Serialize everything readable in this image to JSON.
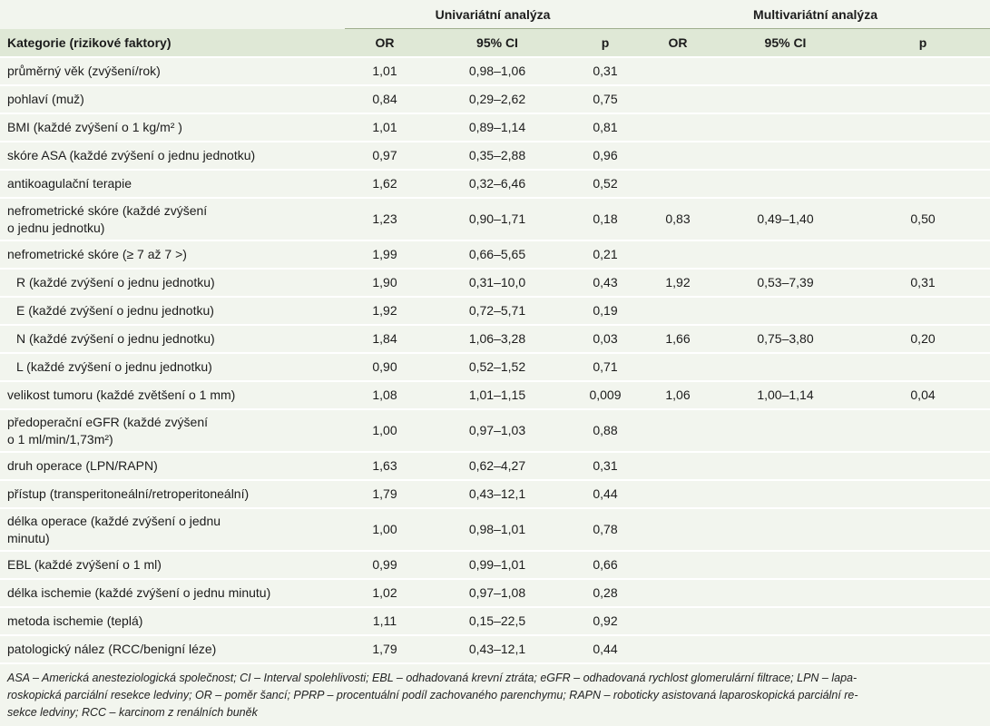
{
  "groups": {
    "univariate": "Univariátní analýza",
    "multivariate": "Multivariátní analýza"
  },
  "headers": {
    "category": "Kategorie (rizikové faktory)",
    "uni_or": "OR",
    "uni_ci": "95% CI",
    "uni_p": "p",
    "multi_or": "OR",
    "multi_ci": "95% CI",
    "multi_p": "p"
  },
  "rows": [
    {
      "label": "průměrný věk (zvýšení/rok)",
      "or": "1,01",
      "ci": "0,98–1,06",
      "p": "0,31",
      "m_or": "",
      "m_ci": "",
      "m_p": ""
    },
    {
      "label": "pohlaví (muž)",
      "or": "0,84",
      "ci": "0,29–2,62",
      "p": "0,75",
      "m_or": "",
      "m_ci": "",
      "m_p": ""
    },
    {
      "label": "BMI (každé zvýšení o 1 kg/m² )",
      "or": "1,01",
      "ci": "0,89–1,14",
      "p": "0,81",
      "m_or": "",
      "m_ci": "",
      "m_p": ""
    },
    {
      "label": "skóre ASA (každé zvýšení o jednu jednotku)",
      "or": "0,97",
      "ci": "0,35–2,88",
      "p": "0,96",
      "m_or": "",
      "m_ci": "",
      "m_p": ""
    },
    {
      "label": "antikoagulační terapie",
      "or": "1,62",
      "ci": "0,32–6,46",
      "p": "0,52",
      "m_or": "",
      "m_ci": "",
      "m_p": ""
    },
    {
      "label": "nefrometrické skóre (každé zvýšení",
      "label2": "o jednu jednotku)",
      "or": "1,23",
      "ci": "0,90–1,71",
      "p": "0,18",
      "m_or": "0,83",
      "m_ci": "0,49–1,40",
      "m_p": "0,50"
    },
    {
      "label": "nefrometrické skóre (≥ 7 až 7 >)",
      "or": "1,99",
      "ci": "0,66–5,65",
      "p": "0,21",
      "m_or": "",
      "m_ci": "",
      "m_p": ""
    },
    {
      "label": "R (každé zvýšení o jednu jednotku)",
      "indent": true,
      "or": "1,90",
      "ci": "0,31–10,0",
      "p": "0,43",
      "m_or": "1,92",
      "m_ci": "0,53–7,39",
      "m_p": "0,31"
    },
    {
      "label": "E (každé zvýšení o jednu jednotku)",
      "indent": true,
      "or": "1,92",
      "ci": "0,72–5,71",
      "p": "0,19",
      "m_or": "",
      "m_ci": "",
      "m_p": ""
    },
    {
      "label": "N (každé zvýšení o jednu jednotku)",
      "indent": true,
      "or": "1,84",
      "ci": "1,06–3,28",
      "p": "0,03",
      "m_or": "1,66",
      "m_ci": "0,75–3,80",
      "m_p": "0,20"
    },
    {
      "label": "L (každé zvýšení o jednu jednotku)",
      "indent": true,
      "or": "0,90",
      "ci": "0,52–1,52",
      "p": "0,71",
      "m_or": "",
      "m_ci": "",
      "m_p": ""
    },
    {
      "label": "velikost tumoru (každé zvětšení o 1 mm)",
      "or": "1,08",
      "ci": "1,01–1,15",
      "p": "0,009",
      "m_or": "1,06",
      "m_ci": "1,00–1,14",
      "m_p": "0,04"
    },
    {
      "label": "předoperační eGFR (každé zvýšení",
      "label2": "o 1 ml/min/1,73m²)",
      "or": "1,00",
      "ci": "0,97–1,03",
      "p": "0,88",
      "m_or": "",
      "m_ci": "",
      "m_p": ""
    },
    {
      "label": "druh operace (LPN/RAPN)",
      "or": "1,63",
      "ci": "0,62–4,27",
      "p": "0,31",
      "m_or": "",
      "m_ci": "",
      "m_p": ""
    },
    {
      "label": "přístup (transperitoneální/retroperitoneální)",
      "or": "1,79",
      "ci": "0,43–12,1",
      "p": "0,44",
      "m_or": "",
      "m_ci": "",
      "m_p": ""
    },
    {
      "label": "délka operace (každé zvýšení o jednu",
      "label2": "minutu)",
      "or": "1,00",
      "ci": "0,98–1,01",
      "p": "0,78",
      "m_or": "",
      "m_ci": "",
      "m_p": ""
    },
    {
      "label": "EBL (každé zvýšení o 1 ml)",
      "or": "0,99",
      "ci": "0,99–1,01",
      "p": "0,66",
      "m_or": "",
      "m_ci": "",
      "m_p": ""
    },
    {
      "label": "délka ischemie (každé zvýšení o jednu minutu)",
      "or": "1,02",
      "ci": "0,97–1,08",
      "p": "0,28",
      "m_or": "",
      "m_ci": "",
      "m_p": ""
    },
    {
      "label": "metoda ischemie (teplá)",
      "or": "1,11",
      "ci": "0,15–22,5",
      "p": "0,92",
      "m_or": "",
      "m_ci": "",
      "m_p": ""
    },
    {
      "label": "patologický nález (RCC/benigní léze)",
      "or": "1,79",
      "ci": "0,43–12,1",
      "p": "0,44",
      "m_or": "",
      "m_ci": "",
      "m_p": ""
    }
  ],
  "footnote": {
    "line1": "ASA – Americká anesteziologická společnost; CI – Interval spolehlivosti; EBL – odhadovaná krevní ztráta; eGFR – odhadovaná rychlost glomerulární filtrace; LPN – lapa-",
    "line2": "roskopická parciální resekce ledviny; OR – poměr šancí; PPRP – procentuální podíl zachovaného parenchymu; RAPN – roboticky asistovaná laparoskopická parciální re-",
    "line3": "sekce ledviny; RCC – karcinom z renálních buněk"
  }
}
